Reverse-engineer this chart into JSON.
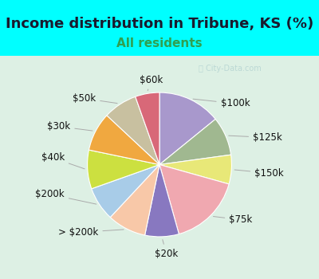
{
  "title": "Income distribution in Tribune, KS (%)",
  "subtitle": "All residents",
  "background_cyan": "#00FFFF",
  "background_chart": "#e0f0e8",
  "labels": [
    "$100k",
    "$125k",
    "$150k",
    "$75k",
    "$20k",
    "> $200k",
    "$200k",
    "$40k",
    "$30k",
    "$50k",
    "$60k"
  ],
  "values": [
    13,
    8,
    6,
    15,
    7,
    8,
    7,
    8,
    8,
    7,
    5
  ],
  "colors": [
    "#a898cc",
    "#a0b890",
    "#e8e878",
    "#f0a8b0",
    "#8878c0",
    "#f8c8a8",
    "#a8cce8",
    "#cce040",
    "#f0a840",
    "#c8c0a0",
    "#d86878"
  ],
  "title_fontsize": 13,
  "subtitle_fontsize": 11,
  "subtitle_color": "#30a050",
  "label_fontsize": 8.5,
  "watermark": "City-Data.com"
}
